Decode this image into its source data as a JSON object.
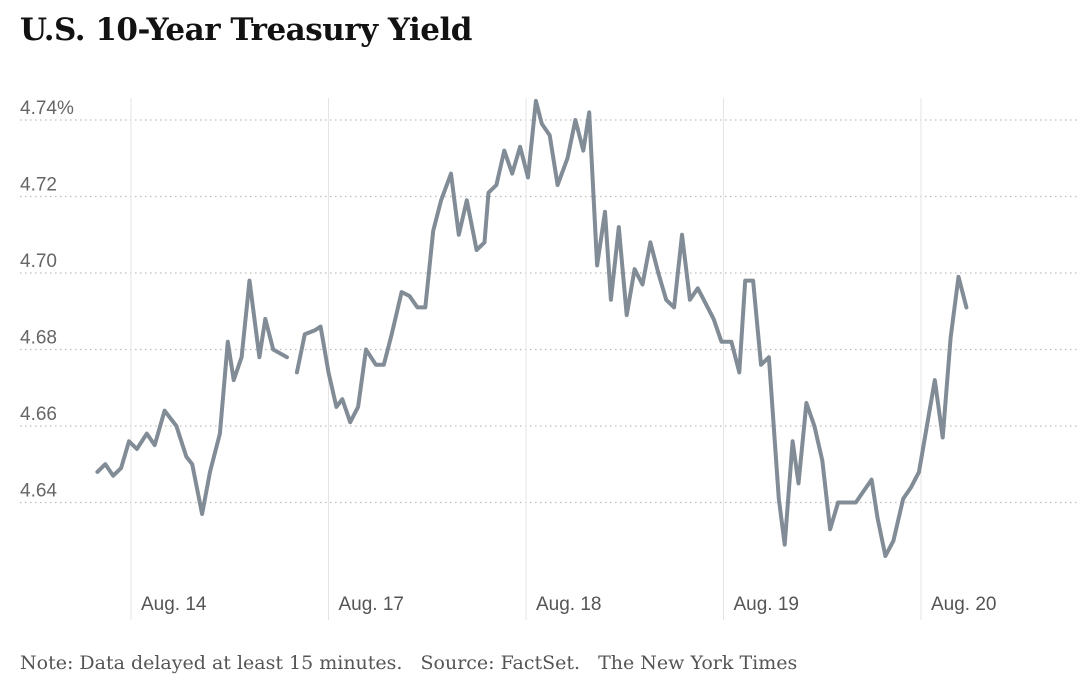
{
  "title": "U.S. 10-Year Treasury Yield",
  "footnote": {
    "note": "Note: Data delayed at least 15 minutes.",
    "source": "Source: FactSet.",
    "credit": "The New York Times"
  },
  "chart_data": {
    "type": "line",
    "title": "U.S. 10-Year Treasury Yield",
    "xlabel": "",
    "ylabel": "",
    "unit": "%",
    "grid": true,
    "ylim": [
      4.625,
      4.745
    ],
    "y_ticks": [
      {
        "value": 4.74,
        "label": "4.74%"
      },
      {
        "value": 4.72,
        "label": "4.72"
      },
      {
        "value": 4.7,
        "label": "4.70"
      },
      {
        "value": 4.68,
        "label": "4.68"
      },
      {
        "value": 4.66,
        "label": "4.66"
      },
      {
        "value": 4.64,
        "label": "4.64"
      }
    ],
    "x_ticks": [
      {
        "value": 0,
        "label": "Aug. 14"
      },
      {
        "value": 1,
        "label": "Aug. 17"
      },
      {
        "value": 2,
        "label": "Aug. 18"
      },
      {
        "value": 3,
        "label": "Aug. 19"
      },
      {
        "value": 4,
        "label": "Aug. 20"
      }
    ],
    "xlim": [
      -0.17,
      4.77
    ],
    "series": [
      {
        "color": "#818c96",
        "segments": [
          [
            [
              -0.17,
              4.648
            ],
            [
              -0.13,
              4.65
            ],
            [
              -0.09,
              4.647
            ],
            [
              -0.05,
              4.649
            ],
            [
              -0.01,
              4.656
            ],
            [
              0.03,
              4.654
            ],
            [
              0.08,
              4.658
            ],
            [
              0.12,
              4.655
            ],
            [
              0.17,
              4.664
            ],
            [
              0.23,
              4.66
            ],
            [
              0.28,
              4.652
            ],
            [
              0.31,
              4.65
            ],
            [
              0.36,
              4.637
            ],
            [
              0.4,
              4.648
            ],
            [
              0.45,
              4.658
            ],
            [
              0.49,
              4.682
            ],
            [
              0.52,
              4.672
            ],
            [
              0.56,
              4.678
            ],
            [
              0.6,
              4.698
            ],
            [
              0.65,
              4.678
            ],
            [
              0.68,
              4.688
            ],
            [
              0.72,
              4.68
            ],
            [
              0.79,
              4.678
            ]
          ],
          [
            [
              0.84,
              4.674
            ],
            [
              0.88,
              4.684
            ],
            [
              0.93,
              4.685
            ],
            [
              0.96,
              4.686
            ],
            [
              1.0,
              4.674
            ],
            [
              1.04,
              4.665
            ],
            [
              1.07,
              4.667
            ],
            [
              1.11,
              4.661
            ],
            [
              1.15,
              4.665
            ],
            [
              1.19,
              4.68
            ],
            [
              1.24,
              4.676
            ],
            [
              1.28,
              4.676
            ],
            [
              1.32,
              4.684
            ],
            [
              1.37,
              4.695
            ],
            [
              1.41,
              4.694
            ],
            [
              1.45,
              4.691
            ],
            [
              1.49,
              4.691
            ],
            [
              1.53,
              4.711
            ],
            [
              1.57,
              4.719
            ],
            [
              1.62,
              4.726
            ],
            [
              1.66,
              4.71
            ],
            [
              1.7,
              4.719
            ],
            [
              1.75,
              4.706
            ],
            [
              1.79,
              4.708
            ],
            [
              1.81,
              4.721
            ],
            [
              1.85,
              4.723
            ],
            [
              1.89,
              4.732
            ],
            [
              1.93,
              4.726
            ],
            [
              1.97,
              4.733
            ],
            [
              2.01,
              4.725
            ],
            [
              2.05,
              4.745
            ],
            [
              2.08,
              4.739
            ],
            [
              2.12,
              4.736
            ],
            [
              2.16,
              4.723
            ],
            [
              2.21,
              4.73
            ],
            [
              2.25,
              4.74
            ],
            [
              2.29,
              4.732
            ],
            [
              2.32,
              4.742
            ],
            [
              2.36,
              4.702
            ],
            [
              2.4,
              4.716
            ],
            [
              2.43,
              4.693
            ],
            [
              2.47,
              4.712
            ],
            [
              2.51,
              4.689
            ],
            [
              2.55,
              4.701
            ],
            [
              2.59,
              4.697
            ],
            [
              2.63,
              4.708
            ],
            [
              2.67,
              4.7
            ],
            [
              2.71,
              4.693
            ],
            [
              2.75,
              4.691
            ],
            [
              2.79,
              4.71
            ],
            [
              2.83,
              4.693
            ],
            [
              2.87,
              4.696
            ],
            [
              2.91,
              4.692
            ],
            [
              2.95,
              4.688
            ],
            [
              2.99,
              4.682
            ],
            [
              3.04,
              4.682
            ],
            [
              3.08,
              4.674
            ],
            [
              3.11,
              4.698
            ],
            [
              3.15,
              4.698
            ],
            [
              3.19,
              4.676
            ],
            [
              3.23,
              4.678
            ],
            [
              3.28,
              4.641
            ],
            [
              3.31,
              4.629
            ],
            [
              3.35,
              4.656
            ],
            [
              3.38,
              4.645
            ],
            [
              3.42,
              4.666
            ],
            [
              3.46,
              4.66
            ],
            [
              3.5,
              4.651
            ],
            [
              3.54,
              4.633
            ],
            [
              3.58,
              4.64
            ],
            [
              3.63,
              4.64
            ],
            [
              3.67,
              4.64
            ],
            [
              3.71,
              4.643
            ],
            [
              3.75,
              4.646
            ],
            [
              3.78,
              4.636
            ],
            [
              3.82,
              4.626
            ],
            [
              3.86,
              4.63
            ],
            [
              3.91,
              4.641
            ],
            [
              3.95,
              4.644
            ],
            [
              3.99,
              4.648
            ],
            [
              4.03,
              4.66
            ],
            [
              4.07,
              4.672
            ],
            [
              4.11,
              4.657
            ],
            [
              4.15,
              4.683
            ],
            [
              4.19,
              4.699
            ],
            [
              4.23,
              4.691
            ]
          ]
        ]
      }
    ]
  }
}
